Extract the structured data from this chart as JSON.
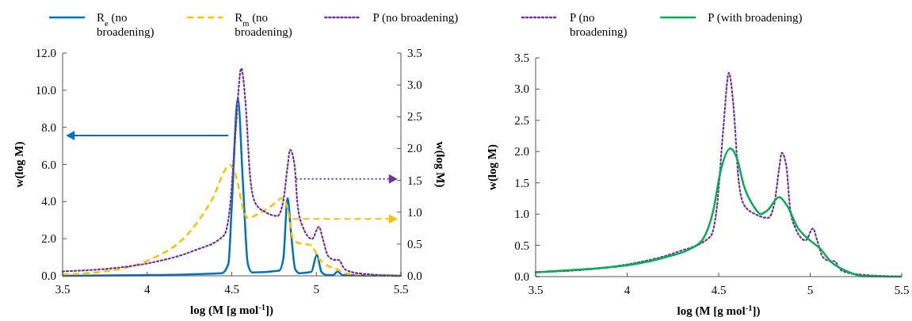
{
  "chart_data": [
    {
      "type": "line",
      "xlabel": "log (M [g mol$^{-1}$])",
      "ylabel": "w(log M)",
      "y2label": "w(log M)",
      "legend": "top",
      "xlim": [
        3.5,
        5.5
      ],
      "xticks": [
        3.5,
        4,
        4.5,
        5,
        5.5
      ],
      "ylim": [
        0,
        12
      ],
      "yticks": [
        {
          "value": 0,
          "label": "0.0"
        },
        {
          "value": 2,
          "label": "2.0"
        },
        {
          "value": 4,
          "label": "4.0"
        },
        {
          "value": 6,
          "label": "6.0"
        },
        {
          "value": 8,
          "label": "8.0"
        },
        {
          "value": 10,
          "label": "10.0"
        },
        {
          "value": 12,
          "label": "12.0"
        }
      ],
      "y2lim": [
        0,
        3.5
      ],
      "y2ticks": [
        {
          "value": 0,
          "label": "0.0"
        },
        {
          "value": 0.5,
          "label": "0.5"
        },
        {
          "value": 1,
          "label": "1.0"
        },
        {
          "value": 1.5,
          "label": "1.5"
        },
        {
          "value": 2,
          "label": "2.0"
        },
        {
          "value": 2.5,
          "label": "2.5"
        },
        {
          "value": 3,
          "label": "3.0"
        },
        {
          "value": 3.5,
          "label": "3.5"
        }
      ],
      "series": [
        {
          "name": "R$_{e}$ (no broadening)",
          "color": "#0070c0",
          "line_style": "solid",
          "x": [
            3.5,
            4.03,
            4.44,
            4.48,
            4.5,
            4.536,
            4.565,
            4.595,
            4.62,
            4.78,
            4.805,
            4.83,
            4.85,
            4.875,
            4.9,
            4.97,
            5.003,
            5.03,
            5.06,
            5.1,
            5.125,
            5.155,
            5.5
          ],
          "values": [
            0,
            0.04,
            0.14,
            0.64,
            3.77,
            9.58,
            5.2,
            0.64,
            0.18,
            0.28,
            0.93,
            4.2,
            2.35,
            0.36,
            0.14,
            0.21,
            1.14,
            0.21,
            0.04,
            0.04,
            0.24,
            0.04,
            0
          ]
        },
        {
          "name": "R$_{m}$ (no broadening)",
          "color": "#ffc000",
          "line_style": "dashed",
          "axis": "y2",
          "x": [
            3.5,
            3.8,
            4.03,
            4.22,
            4.38,
            4.49,
            4.53,
            4.57,
            4.595,
            4.66,
            4.735,
            4.8,
            4.83,
            4.86,
            4.89,
            4.97,
            5.015,
            5.06,
            5.125,
            5.19,
            5.5
          ],
          "values": [
            0.02,
            0.09,
            0.27,
            0.6,
            1.18,
            1.74,
            1.52,
            1.02,
            0.91,
            0.98,
            1.1,
            1.22,
            1.06,
            0.6,
            0.52,
            0.48,
            0.27,
            0.17,
            0.1,
            0.03,
            0
          ]
        },
        {
          "name": "P (no broadening)",
          "color": "#7030a0",
          "line_style": "dotted",
          "axis": "y2",
          "x": [
            3.5,
            3.8,
            4.03,
            4.27,
            4.455,
            4.49,
            4.525,
            4.556,
            4.58,
            4.61,
            4.64,
            4.7,
            4.77,
            4.805,
            4.83,
            4.845,
            4.87,
            4.89,
            4.92,
            4.975,
            5.015,
            5.04,
            5.07,
            5.11,
            5.13,
            5.17,
            5.25,
            5.5
          ],
          "values": [
            0.07,
            0.12,
            0.21,
            0.39,
            0.64,
            1.1,
            2.35,
            3.26,
            2.76,
            1.52,
            1.14,
            1.0,
            0.94,
            1.18,
            1.72,
            1.98,
            1.76,
            1.1,
            0.77,
            0.58,
            0.77,
            0.56,
            0.31,
            0.25,
            0.25,
            0.1,
            0.04,
            0
          ]
        }
      ]
    },
    {
      "type": "line",
      "xlabel": "log (M [g mol$^{-1}$])",
      "ylabel": "w(log M)",
      "legend": "top",
      "xlim": [
        3.5,
        5.5
      ],
      "xticks": [
        3.5,
        4,
        4.5,
        5,
        5.5
      ],
      "ylim": [
        0,
        3.5
      ],
      "yticks": [
        {
          "value": 0,
          "label": "0.0"
        },
        {
          "value": 0.5,
          "label": "0.5"
        },
        {
          "value": 1,
          "label": "1.0"
        },
        {
          "value": 1.5,
          "label": "1.5"
        },
        {
          "value": 2,
          "label": "2.0"
        },
        {
          "value": 2.5,
          "label": "2.5"
        },
        {
          "value": 3,
          "label": "3.0"
        },
        {
          "value": 3.5,
          "label": "3.5"
        }
      ],
      "series": [
        {
          "name": "P (no broadening)",
          "color": "#7030a0",
          "line_style": "dotted",
          "x": [
            3.5,
            3.8,
            4.03,
            4.27,
            4.455,
            4.49,
            4.525,
            4.556,
            4.58,
            4.61,
            4.64,
            4.7,
            4.77,
            4.805,
            4.83,
            4.845,
            4.87,
            4.89,
            4.92,
            4.975,
            5.015,
            5.04,
            5.07,
            5.11,
            5.13,
            5.17,
            5.25,
            5.5
          ],
          "values": [
            0.07,
            0.12,
            0.21,
            0.39,
            0.64,
            1.1,
            2.35,
            3.26,
            2.76,
            1.52,
            1.14,
            1.0,
            0.94,
            1.18,
            1.72,
            1.98,
            1.76,
            1.1,
            0.77,
            0.58,
            0.77,
            0.56,
            0.31,
            0.25,
            0.25,
            0.1,
            0.04,
            0
          ]
        },
        {
          "name": "P (with broadening)",
          "color": "#00b050",
          "line_style": "solid",
          "x": [
            3.5,
            3.777,
            4.0,
            4.21,
            4.355,
            4.41,
            4.47,
            4.51,
            4.564,
            4.6,
            4.64,
            4.69,
            4.73,
            4.77,
            4.83,
            4.875,
            4.93,
            4.99,
            5.05,
            5.12,
            5.19,
            5.29,
            5.5
          ],
          "values": [
            0.07,
            0.12,
            0.18,
            0.31,
            0.46,
            0.58,
            1.05,
            1.68,
            2.05,
            1.89,
            1.43,
            1.13,
            1.0,
            1.07,
            1.27,
            1.13,
            0.79,
            0.6,
            0.46,
            0.22,
            0.1,
            0.01,
            0
          ]
        }
      ]
    }
  ]
}
